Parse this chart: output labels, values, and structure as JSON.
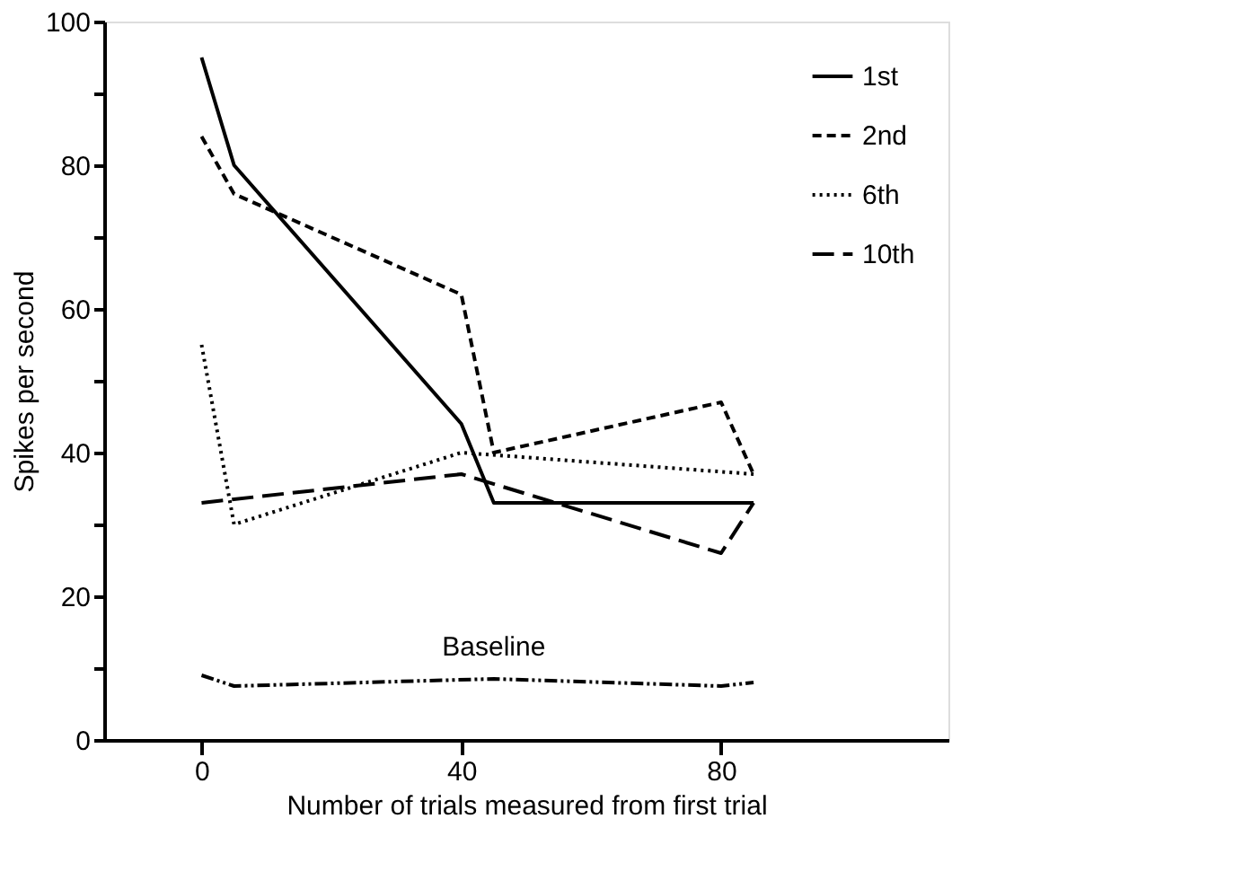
{
  "chart_data": {
    "type": "line",
    "xlabel": "Number of trials measured from first trial",
    "ylabel": "Spikes per second",
    "xlim": [
      -15,
      115
    ],
    "xticks": [
      0,
      40,
      80
    ],
    "ylim": [
      0,
      100
    ],
    "yticks": [
      0,
      {
        "value": 10,
        "label": null
      },
      20,
      {
        "value": 30,
        "label": null
      },
      40,
      {
        "value": 50,
        "label": null
      },
      60,
      {
        "value": 70,
        "label": null
      },
      80,
      {
        "value": 90,
        "label": null
      },
      100
    ],
    "annotations": [
      {
        "text": "Baseline",
        "x": 45,
        "y": 8.5
      }
    ],
    "grid": false,
    "legend": "top right",
    "marker": "none",
    "series": [
      {
        "name": "1st",
        "color": "#000000",
        "line_style": "solid",
        "x": [
          0,
          5,
          40,
          45,
          85
        ],
        "values": [
          95,
          80,
          44,
          33,
          33
        ]
      },
      {
        "name": "2nd",
        "color": "#000000",
        "line_style": "dashed",
        "x": [
          0,
          5,
          40,
          45,
          80,
          85
        ],
        "values": [
          84,
          76,
          62,
          40,
          47,
          37
        ]
      },
      {
        "name": "6th",
        "color": "#000000",
        "line_style": "dotted",
        "x": [
          0,
          5,
          40,
          85
        ],
        "values": [
          55,
          30,
          40,
          37
        ]
      },
      {
        "name": "10th",
        "color": "#000000",
        "line_style": "longdashed",
        "x": [
          0,
          40,
          80,
          85
        ],
        "values": [
          33,
          37,
          26,
          33
        ]
      },
      {
        "color": "#000000",
        "line_style": "dashdotdot",
        "x": [
          0,
          5,
          45,
          80,
          85
        ],
        "values": [
          9,
          7.5,
          8.5,
          7.5,
          8
        ]
      }
    ]
  }
}
